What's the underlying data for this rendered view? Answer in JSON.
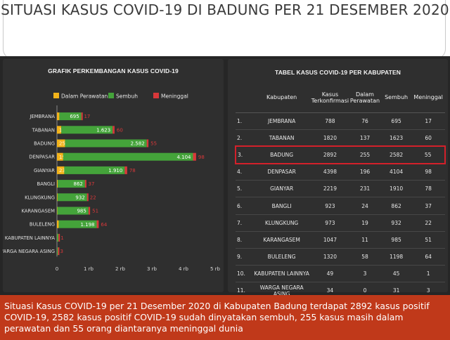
{
  "header": {
    "title": "SITUASI KASUS COVID-19 DI BADUNG PER 21 DESEMBER 2020"
  },
  "chart_data": {
    "type": "bar",
    "orientation": "horizontal",
    "stacked": true,
    "title": "GRAFIK PERKEMBANGAN KASUS COVID-19",
    "categories": [
      "JEMBRANA",
      "TABANAN",
      "BADUNG",
      "DENPASAR",
      "GIANYAR",
      "BANGLI",
      "KLUNGKUNG",
      "KARANGASEM",
      "BULELENG",
      "KABUPATEN LAINNYA",
      "WARGA NEGARA ASING"
    ],
    "series": [
      {
        "name": "Dalam Perawatan",
        "color": "#f3b31a",
        "values": [
          76,
          137,
          255,
          196,
          231,
          24,
          19,
          11,
          58,
          3,
          0
        ]
      },
      {
        "name": "Sembuh",
        "color": "#44a33a",
        "values": [
          695,
          1623,
          2582,
          4104,
          1910,
          862,
          932,
          985,
          1198,
          45,
          31
        ]
      },
      {
        "name": "Meninggal",
        "color": "#d8383a",
        "values": [
          17,
          60,
          55,
          98,
          78,
          37,
          22,
          51,
          64,
          1,
          3
        ]
      }
    ],
    "bar_labels": [
      [
        "76",
        "695",
        "17"
      ],
      [
        "137",
        "1.623",
        "60"
      ],
      [
        "255",
        "2.582",
        "55"
      ],
      [
        "196",
        "4.104",
        "98"
      ],
      [
        "231",
        "1.910",
        "78"
      ],
      [
        "24",
        "862",
        "37"
      ],
      [
        "19",
        "932",
        "22"
      ],
      [
        "11",
        "985",
        "51"
      ],
      [
        "58",
        "1.198",
        "64"
      ],
      [
        "",
        "",
        "1"
      ],
      [
        "",
        "",
        "3"
      ]
    ],
    "xlim": [
      0,
      5000
    ],
    "xticks": [
      0,
      1000,
      2000,
      3000,
      4000,
      5000
    ],
    "xtick_labels": [
      "0",
      "1 rb",
      "2 rb",
      "3 rb",
      "4 rb",
      "5 rb"
    ],
    "legend_position": "top",
    "grid": false
  },
  "table": {
    "title": "TABEL KASUS COVID-19 PER KABUPATEN",
    "headers": [
      "",
      "Kabupaten",
      "Kasus Terkonfirmasi",
      "Dalam Perawatan",
      "Sembuh",
      "Meninggal"
    ],
    "highlight_row": 2,
    "rows": [
      [
        "1.",
        "JEMBRANA",
        "788",
        "76",
        "695",
        "17"
      ],
      [
        "2.",
        "TABANAN",
        "1820",
        "137",
        "1623",
        "60"
      ],
      [
        "3.",
        "BADUNG",
        "2892",
        "255",
        "2582",
        "55"
      ],
      [
        "4.",
        "DENPASAR",
        "4398",
        "196",
        "4104",
        "98"
      ],
      [
        "5.",
        "GIANYAR",
        "2219",
        "231",
        "1910",
        "78"
      ],
      [
        "6.",
        "BANGLI",
        "923",
        "24",
        "862",
        "37"
      ],
      [
        "7.",
        "KLUNGKUNG",
        "973",
        "19",
        "932",
        "22"
      ],
      [
        "8.",
        "KARANGASEM",
        "1047",
        "11",
        "985",
        "51"
      ],
      [
        "9.",
        "BULELENG",
        "1320",
        "58",
        "1198",
        "64"
      ],
      [
        "10.",
        "KABUPATEN LAINNYA",
        "49",
        "3",
        "45",
        "1"
      ],
      [
        "11.",
        "WARGA NEGARA ASING",
        "34",
        "0",
        "31",
        "3"
      ]
    ]
  },
  "caption": "Situasi Kasus COVID-19 per 21 Desember 2020 di Kabupaten Badung terdapat 2892 kasus positif COVID-19, 2582 kasus positif COVID-19 sudah dinyatakan sembuh, 255 kasus masih dalam perawatan dan 55 orang diantaranya meninggal dunia"
}
